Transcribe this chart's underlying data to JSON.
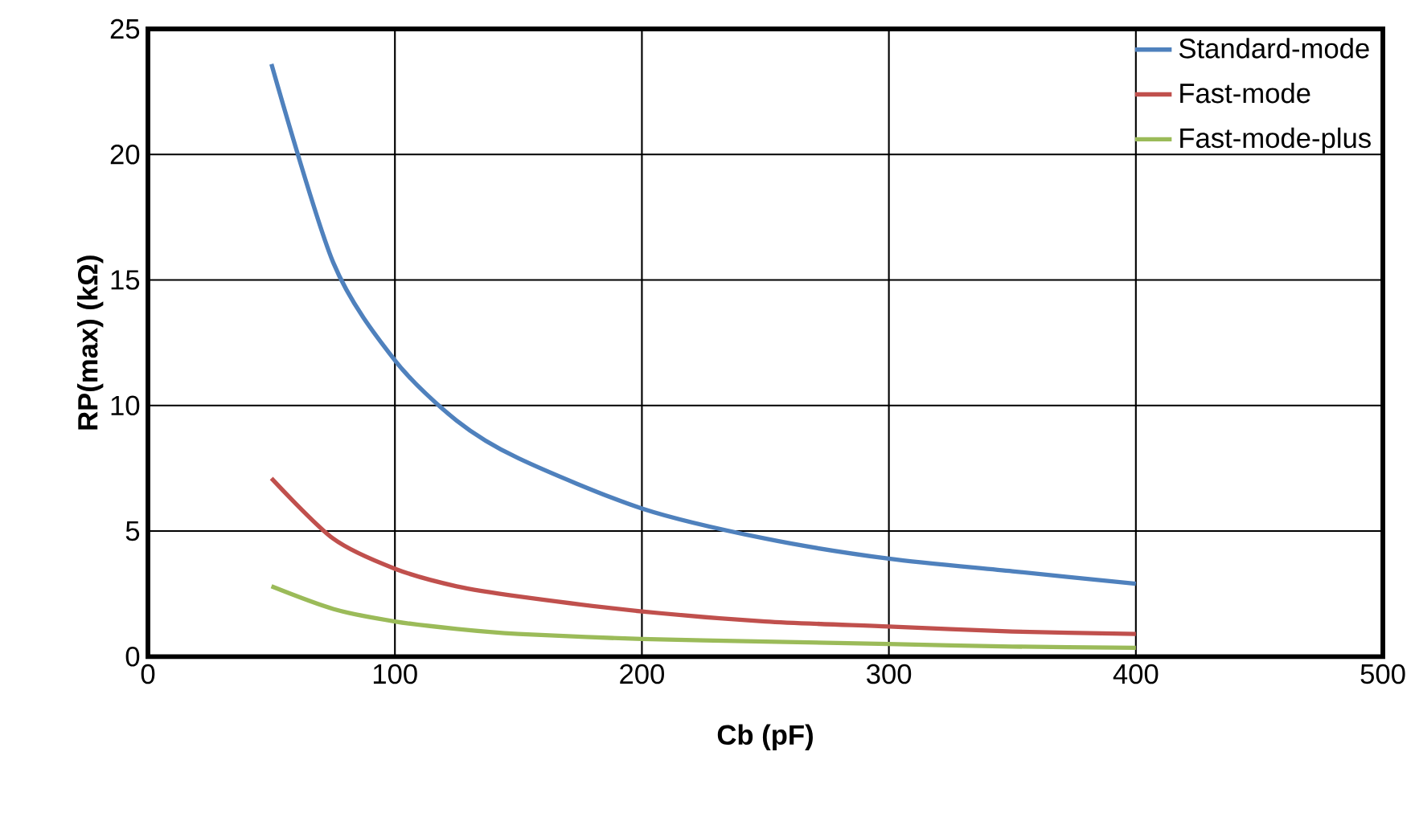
{
  "chart_data": {
    "type": "line",
    "xlabel": "Cb (pF)",
    "ylabel": "RP(max) (kΩ)",
    "x": [
      50,
      75,
      100,
      125,
      150,
      200,
      250,
      300,
      350,
      400
    ],
    "series": [
      {
        "name": "Standard-mode",
        "color": "#4f81bd",
        "values": [
          23.6,
          15.7,
          11.8,
          9.4,
          7.9,
          5.9,
          4.7,
          3.9,
          3.4,
          2.9
        ]
      },
      {
        "name": "Fast-mode",
        "color": "#c0504d",
        "values": [
          7.1,
          4.7,
          3.5,
          2.8,
          2.4,
          1.8,
          1.4,
          1.2,
          1.0,
          0.9
        ]
      },
      {
        "name": "Fast-mode-plus",
        "color": "#9bbb59",
        "values": [
          2.8,
          1.9,
          1.4,
          1.1,
          0.9,
          0.7,
          0.6,
          0.5,
          0.4,
          0.35
        ]
      }
    ],
    "xlim": [
      0,
      500
    ],
    "xticks": [
      0,
      100,
      200,
      300,
      400,
      500
    ],
    "ylim": [
      0,
      25
    ],
    "yticks": [
      0,
      5,
      10,
      15,
      20,
      25
    ],
    "grid": true,
    "legend": "top right",
    "marker": "none",
    "line_style": "solid"
  }
}
